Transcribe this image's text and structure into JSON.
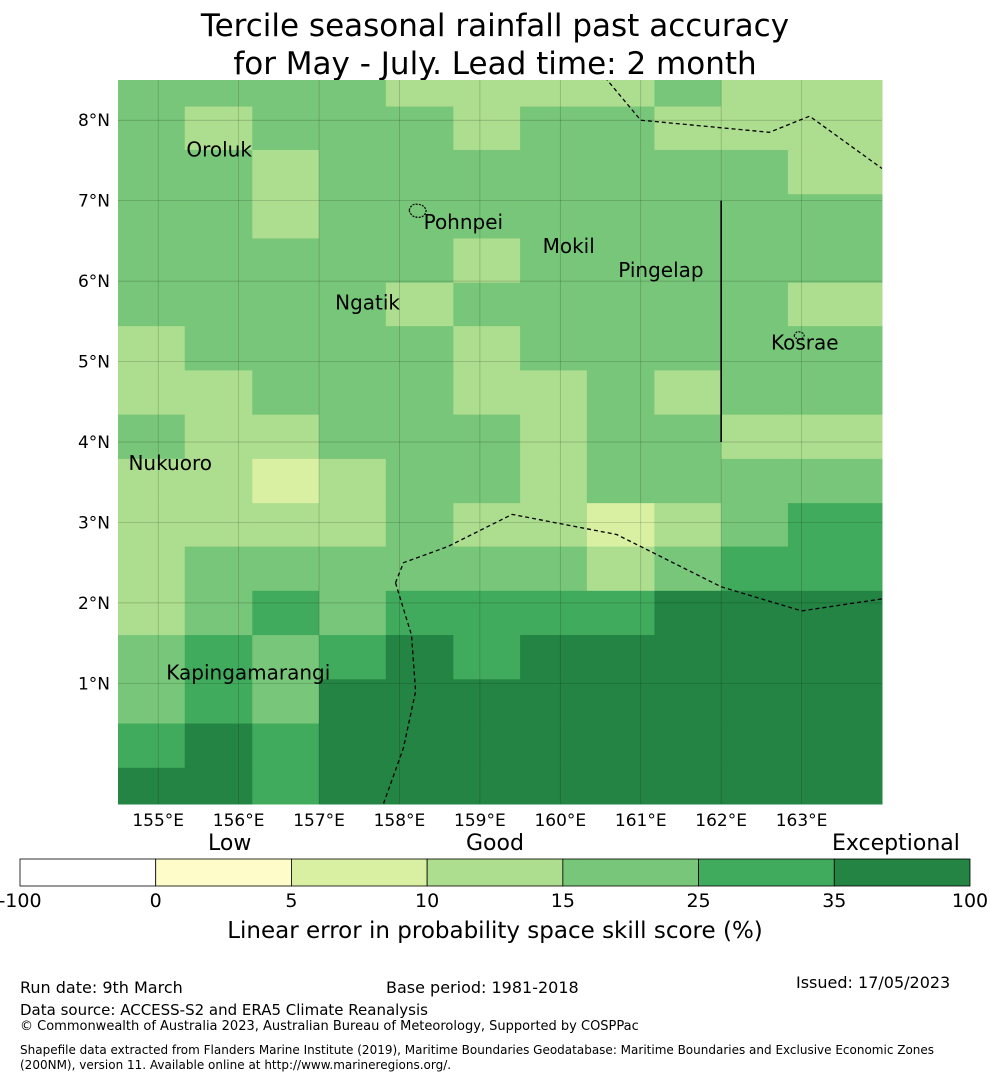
{
  "title": {
    "line1": "Tercile seasonal rainfall past accuracy",
    "line2": "for May - July. Lead time: 2 month"
  },
  "map": {
    "lon_range": [
      154.5,
      164.0
    ],
    "lat_range": [
      -0.5,
      8.5
    ],
    "lon_ticks": [
      {
        "value": 155,
        "label": "155°E"
      },
      {
        "value": 156,
        "label": "156°E"
      },
      {
        "value": 157,
        "label": "157°E"
      },
      {
        "value": 158,
        "label": "158°E"
      },
      {
        "value": 159,
        "label": "159°E"
      },
      {
        "value": 160,
        "label": "160°E"
      },
      {
        "value": 161,
        "label": "161°E"
      },
      {
        "value": 162,
        "label": "162°E"
      },
      {
        "value": 163,
        "label": "163°E"
      }
    ],
    "lat_ticks": [
      {
        "value": 1,
        "label": "1°N"
      },
      {
        "value": 2,
        "label": "2°N"
      },
      {
        "value": 3,
        "label": "3°N"
      },
      {
        "value": 4,
        "label": "4°N"
      },
      {
        "value": 5,
        "label": "5°N"
      },
      {
        "value": 6,
        "label": "6°N"
      },
      {
        "value": 7,
        "label": "7°N"
      },
      {
        "value": 8,
        "label": "8°N"
      }
    ],
    "grid_lons": [
      154.5,
      155.33,
      156.17,
      157.0,
      157.83,
      158.67,
      159.5,
      160.33,
      161.17,
      162.0,
      162.83,
      164.0
    ],
    "grid_lats": [
      8.5,
      8.17,
      7.63,
      7.08,
      6.53,
      5.98,
      5.44,
      4.89,
      4.34,
      3.79,
      3.24,
      2.7,
      2.15,
      1.6,
      1.05,
      0.5,
      -0.05,
      -0.5
    ],
    "skill_class_grid": [
      [
        3,
        3,
        3,
        3,
        2,
        2,
        2,
        2,
        3,
        2,
        2
      ],
      [
        3,
        2,
        3,
        3,
        3,
        2,
        3,
        3,
        2,
        2,
        2
      ],
      [
        3,
        3,
        2,
        3,
        3,
        3,
        3,
        3,
        3,
        3,
        2
      ],
      [
        3,
        3,
        2,
        3,
        3,
        3,
        3,
        3,
        3,
        3,
        3
      ],
      [
        3,
        3,
        3,
        3,
        3,
        2,
        3,
        3,
        3,
        3,
        3
      ],
      [
        3,
        3,
        3,
        3,
        2,
        3,
        3,
        3,
        3,
        3,
        2
      ],
      [
        2,
        3,
        3,
        3,
        3,
        2,
        3,
        3,
        3,
        3,
        3
      ],
      [
        2,
        2,
        3,
        3,
        3,
        2,
        2,
        3,
        2,
        3,
        3
      ],
      [
        3,
        2,
        2,
        3,
        3,
        3,
        2,
        3,
        3,
        2,
        2
      ],
      [
        2,
        2,
        1,
        2,
        3,
        3,
        2,
        3,
        3,
        3,
        3
      ],
      [
        2,
        2,
        2,
        2,
        3,
        2,
        2,
        1,
        2,
        3,
        4
      ],
      [
        2,
        3,
        3,
        3,
        3,
        3,
        3,
        2,
        3,
        4,
        4
      ],
      [
        2,
        3,
        4,
        3,
        4,
        4,
        4,
        4,
        5,
        5,
        5
      ],
      [
        3,
        4,
        3,
        4,
        5,
        4,
        5,
        5,
        5,
        5,
        5
      ],
      [
        3,
        4,
        3,
        5,
        5,
        5,
        5,
        5,
        5,
        5,
        5
      ],
      [
        4,
        5,
        4,
        5,
        5,
        5,
        5,
        5,
        5,
        5,
        5
      ],
      [
        5,
        5,
        4,
        5,
        5,
        5,
        5,
        5,
        5,
        5,
        5
      ]
    ],
    "places": [
      {
        "name": "Oroluk",
        "lon": 155.35,
        "lat": 7.55
      },
      {
        "name": "Pohnpei",
        "lon": 158.3,
        "lat": 6.65
      },
      {
        "name": "Mokil",
        "lon": 159.78,
        "lat": 6.35
      },
      {
        "name": "Pingelap",
        "lon": 160.72,
        "lat": 6.05
      },
      {
        "name": "Ngatik",
        "lon": 157.2,
        "lat": 5.65
      },
      {
        "name": "Kosrae",
        "lon": 162.62,
        "lat": 5.15
      },
      {
        "name": "Nukuoro",
        "lon": 154.63,
        "lat": 3.65
      },
      {
        "name": "Kapingamarangi",
        "lon": 155.1,
        "lat": 1.05
      }
    ],
    "boundary_lines": [
      [
        [
          160.5,
          8.6
        ],
        [
          161.0,
          8.0
        ],
        [
          162.6,
          7.85
        ],
        [
          163.1,
          8.05
        ],
        [
          164.0,
          7.4
        ]
      ],
      [
        [
          157.95,
          2.25
        ],
        [
          158.05,
          2.5
        ],
        [
          158.6,
          2.7
        ],
        [
          159.4,
          3.1
        ],
        [
          160.7,
          2.85
        ],
        [
          162.0,
          2.2
        ],
        [
          163.0,
          1.9
        ],
        [
          164.0,
          2.05
        ]
      ],
      [
        [
          157.95,
          2.25
        ],
        [
          158.15,
          1.6
        ],
        [
          158.2,
          0.9
        ],
        [
          158.05,
          0.2
        ],
        [
          157.8,
          -0.5
        ]
      ]
    ],
    "solid_line": [
      [
        162.0,
        7.0
      ],
      [
        162.0,
        4.0
      ]
    ]
  },
  "colorbar": {
    "category_labels": {
      "low": "Low",
      "good": "Good",
      "exceptional": "Exceptional"
    },
    "ticks": [
      "-100",
      "0",
      "5",
      "10",
      "15",
      "25",
      "35",
      "100"
    ],
    "colors": [
      "#ffffff",
      "#fefdc9",
      "#d9f0a3",
      "#addd8e",
      "#78c679",
      "#41ab5d",
      "#238443"
    ],
    "title": "Linear error in probability space skill score (%)"
  },
  "footer": {
    "run_date": "Run date: 9th March",
    "base_period": "Base period: 1981-2018",
    "issued": "Issued: 17/05/2023",
    "data_source": "Data source: ACCESS-S2 and ERA5 Climate Reanalysis",
    "copyright": "© Commonwealth of Australia 2023, Australian Bureau of Meteorology, Supported by COSPPac",
    "shapefile_line1": "Shapefile data extracted from Flanders Marine Institute (2019), Maritime Boundaries Geodatabase: Maritime Boundaries and Exclusive Economic Zones",
    "shapefile_line2": "(200NM), version 11. Available online at http://www.marineregions.org/."
  }
}
